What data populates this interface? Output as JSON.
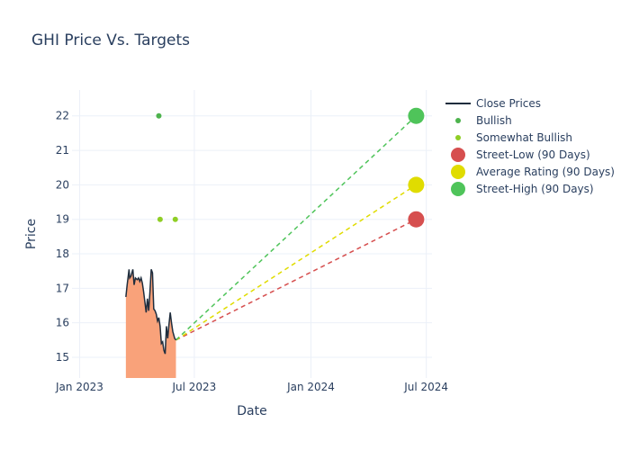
{
  "chart_data": {
    "type": "line",
    "title": "GHI Price Vs. Targets",
    "xlabel": "Date",
    "ylabel": "Price",
    "x_range": [
      "2022-12-20",
      "2024-07-10"
    ],
    "ylim": [
      14.4,
      22.75
    ],
    "x_ticks": [
      {
        "date": "2023-01-01",
        "label": "Jan 2023"
      },
      {
        "date": "2023-07-01",
        "label": "Jul 2023"
      },
      {
        "date": "2024-01-01",
        "label": "Jan 2024"
      },
      {
        "date": "2024-07-01",
        "label": "Jul 2024"
      }
    ],
    "y_ticks": [
      15,
      16,
      17,
      18,
      19,
      20,
      21,
      22
    ],
    "grid": true,
    "legend_position": "right",
    "series": [
      {
        "name": "Close Prices",
        "type": "line-area",
        "color": "#1f2d3d",
        "fill_color": "#f9a27a",
        "points": [
          [
            "2023-03-15",
            16.75
          ],
          [
            "2023-03-17",
            17.1
          ],
          [
            "2023-03-20",
            17.55
          ],
          [
            "2023-03-21",
            17.3
          ],
          [
            "2023-03-23",
            17.35
          ],
          [
            "2023-03-26",
            17.55
          ],
          [
            "2023-03-28",
            17.1
          ],
          [
            "2023-03-30",
            17.3
          ],
          [
            "2023-04-02",
            17.25
          ],
          [
            "2023-04-04",
            17.3
          ],
          [
            "2023-04-06",
            17.2
          ],
          [
            "2023-04-08",
            17.3
          ],
          [
            "2023-04-10",
            17.15
          ],
          [
            "2023-04-12",
            16.9
          ],
          [
            "2023-04-14",
            16.6
          ],
          [
            "2023-04-16",
            16.3
          ],
          [
            "2023-04-18",
            16.7
          ],
          [
            "2023-04-20",
            16.35
          ],
          [
            "2023-04-22",
            16.9
          ],
          [
            "2023-04-24",
            17.55
          ],
          [
            "2023-04-26",
            17.45
          ],
          [
            "2023-04-28",
            16.4
          ],
          [
            "2023-04-30",
            16.35
          ],
          [
            "2023-05-02",
            16.25
          ],
          [
            "2023-05-04",
            16.05
          ],
          [
            "2023-05-06",
            16.15
          ],
          [
            "2023-05-08",
            15.9
          ],
          [
            "2023-05-10",
            15.4
          ],
          [
            "2023-05-12",
            15.45
          ],
          [
            "2023-05-14",
            15.2
          ],
          [
            "2023-05-16",
            15.1
          ],
          [
            "2023-05-18",
            15.9
          ],
          [
            "2023-05-20",
            15.55
          ],
          [
            "2023-05-22",
            15.95
          ],
          [
            "2023-05-24",
            16.3
          ],
          [
            "2023-05-26",
            16.0
          ],
          [
            "2023-05-28",
            15.75
          ],
          [
            "2023-05-31",
            15.55
          ],
          [
            "2023-06-02",
            15.5
          ]
        ]
      },
      {
        "name": "Bullish",
        "type": "markers",
        "color": "#4db34d",
        "points": [
          [
            "2023-05-06",
            22.0
          ]
        ]
      },
      {
        "name": "Somewhat Bullish",
        "type": "markers",
        "color": "#8fce25",
        "points": [
          [
            "2023-05-08",
            19.0
          ],
          [
            "2023-06-01",
            19.0
          ]
        ]
      },
      {
        "name": "Street-Low (90 Days)",
        "type": "target",
        "color": "#d64f4f",
        "start": [
          "2023-06-02",
          15.5
        ],
        "end": [
          "2024-06-15",
          19.0
        ]
      },
      {
        "name": "Average Rating (90 Days)",
        "type": "target",
        "color": "#e0dc00",
        "start": [
          "2023-06-02",
          15.5
        ],
        "end": [
          "2024-06-15",
          20.0
        ]
      },
      {
        "name": "Street-High (90 Days)",
        "type": "target",
        "color": "#4fc45a",
        "start": [
          "2023-06-02",
          15.5
        ],
        "end": [
          "2024-06-15",
          22.0
        ]
      }
    ]
  }
}
